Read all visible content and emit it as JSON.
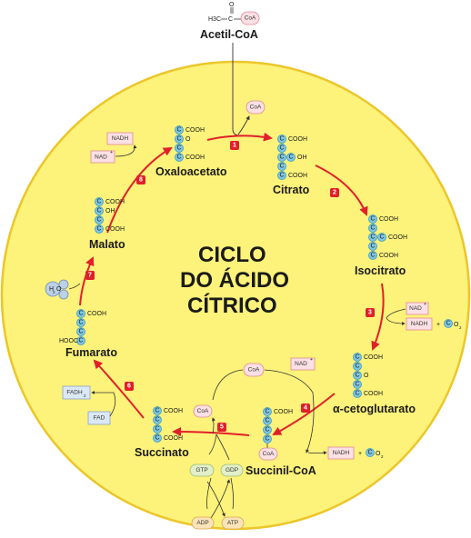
{
  "title": {
    "line1": "CICLO",
    "line2": "DO ÁCIDO",
    "line3": "CÍTRICO"
  },
  "acetyl": {
    "name": "Acetil-CoA",
    "formula_h3c": "H3C",
    "formula_c": "C",
    "formula_o": "O",
    "coa": "CoA"
  },
  "intermediates": {
    "oxaloacetate": "Oxaloacetato",
    "citrate": "Citrato",
    "isocitrate": "Isocitrato",
    "alpha_ketoglutarate": "α-cetoglutarato",
    "succinyl_coa": "Succinil-CoA",
    "succinate": "Succinato",
    "fumarate": "Fumarato",
    "malate": "Malato"
  },
  "chem": {
    "c": "C",
    "cooh": "COOH",
    "oh": "OH",
    "hooc": "HOOC",
    "o": "O"
  },
  "steps": [
    "1",
    "2",
    "3",
    "4",
    "5",
    "6",
    "7",
    "8"
  ],
  "cofactors": {
    "coa": "CoA",
    "nad_plus": "NAD",
    "nadh": "NADH",
    "plus": "+",
    "co2_c": "C",
    "o2": "O",
    "sub2": "2",
    "sup_plus": "+",
    "fadh2": "FADH",
    "fad": "FAD",
    "gtp": "GTP",
    "gdp": "GDP",
    "adp": "ADP",
    "atp": "ATP",
    "water_h": "H",
    "water_o": "O"
  },
  "colors": {
    "background": "#ffffff",
    "circle_fill": "#fdf27a",
    "circle_stroke": "#ecc62a",
    "arrow": "#e0202a",
    "carbon": "#7fc7e4",
    "carbon_stroke": "#3a9ec2",
    "pink_box": "#fbe0e4",
    "pink_stroke": "#e08a96",
    "blue_box": "#dbe8f6",
    "blue_stroke": "#8aa4c8",
    "green_pill": "#e2efc9",
    "orange_pill": "#fbe3b8"
  }
}
